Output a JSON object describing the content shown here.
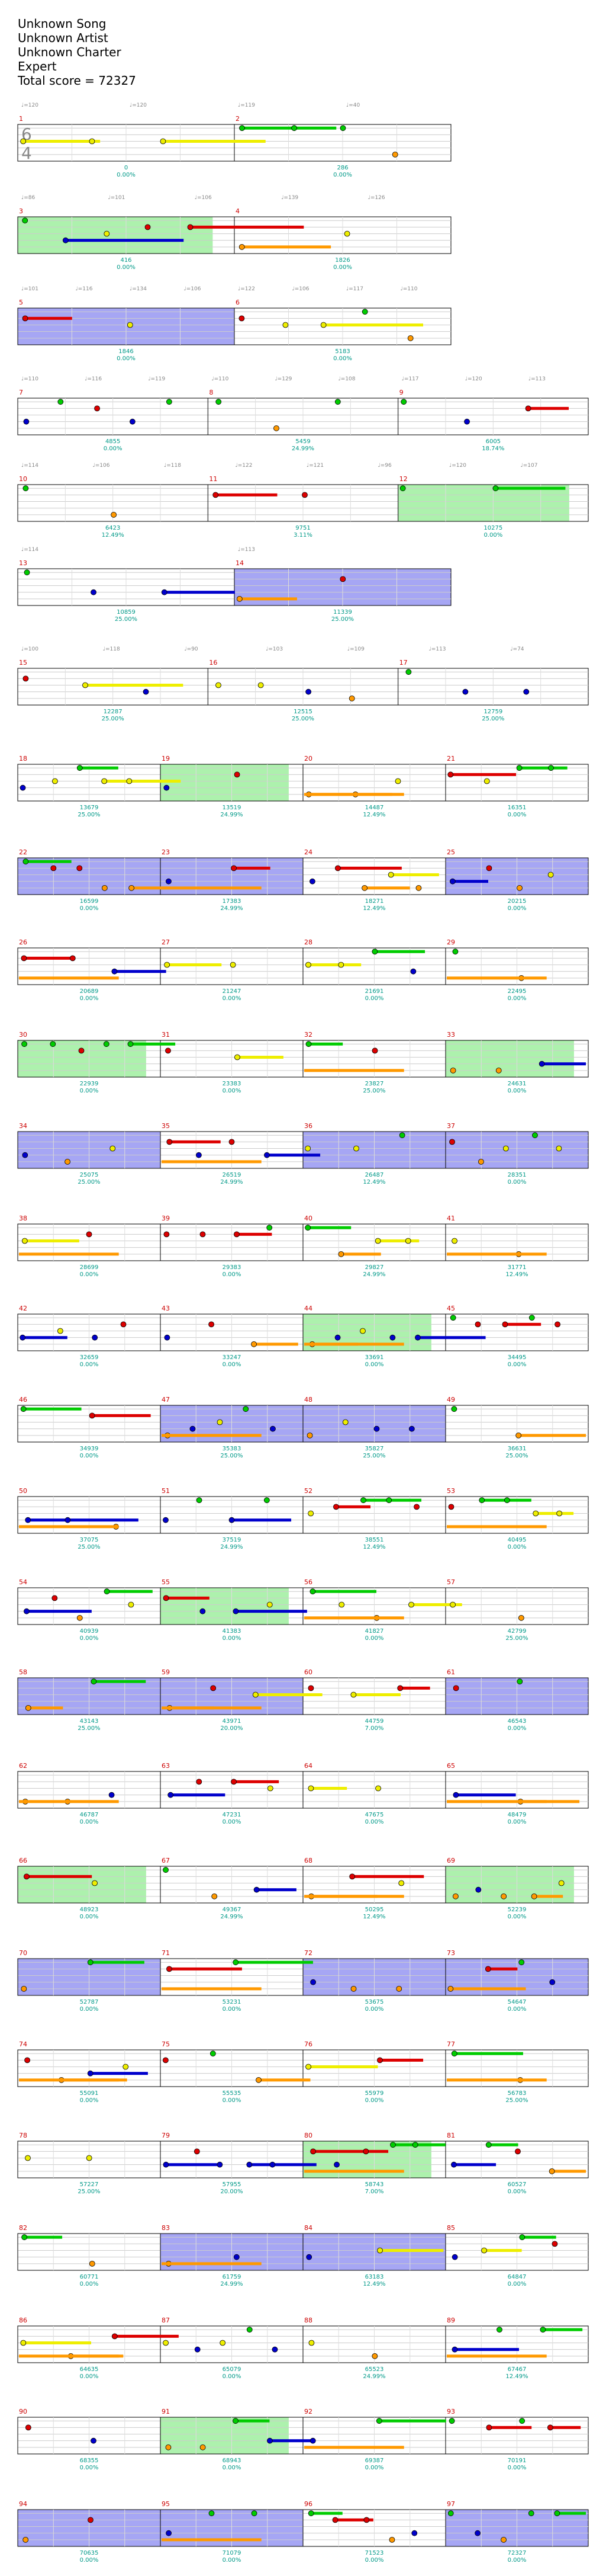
{
  "song": {
    "title": "Unknown Song",
    "artist": "Unknown Artist",
    "charter": "Unknown Charter",
    "difficulty": "Expert",
    "total_score_label": "Total score = 72327"
  },
  "colors": {
    "green": "#00cc00",
    "red": "#dd0000",
    "yellow": "#eeee00",
    "blue": "#0000cc",
    "orange": "#ff9900",
    "purple": "#880088",
    "brown": "#996600",
    "sp_phrase": "#7777ee",
    "sp_activation": "#99ee99",
    "measure_number": "#cc0000",
    "score": "#009988",
    "tempo_marker": "#888888"
  },
  "rows": [
    {
      "measures": [
        {
          "num": "1",
          "sig": "6/4"
        },
        {
          "num": "2",
          "sig": ""
        }
      ],
      "tempos": [
        "♩=120",
        "♩=120",
        "♩=119",
        "♩=40"
      ],
      "scores": [
        {
          "value": "0",
          "pct": "0.00%"
        },
        {
          "value": "286",
          "pct": "0.00%"
        }
      ]
    },
    {
      "measures": [
        {
          "num": "3"
        },
        {
          "num": "4"
        }
      ],
      "tempos": [
        "♩=86",
        "♩=101",
        "♩=106",
        "♩=139",
        "♩=126"
      ],
      "scores": [
        {
          "value": "416",
          "pct": "0.00%"
        },
        {
          "value": "1826",
          "pct": "0.00%"
        }
      ]
    },
    {
      "measures": [
        {
          "num": "5"
        },
        {
          "num": "6"
        }
      ],
      "tempos": [
        "♩=101",
        "♩=116",
        "♩=134",
        "♩=106",
        "♩=122",
        "♩=106",
        "♩=117",
        "♩=110"
      ],
      "scores": [
        {
          "value": "1846",
          "pct": "0.00%"
        },
        {
          "value": "5183",
          "pct": "0.00%"
        }
      ]
    },
    {
      "measures": [
        {
          "num": "7"
        },
        {
          "num": "8"
        },
        {
          "num": "9"
        }
      ],
      "tempos": [
        "♩=110",
        "♩=116",
        "♩=119",
        "♩=110",
        "♩=129",
        "♩=108",
        "♩=117",
        "♩=120",
        "♩=113"
      ],
      "scores": [
        {
          "value": "4855",
          "pct": "0.00%"
        },
        {
          "value": "5459",
          "pct": "24.99%"
        },
        {
          "value": "6005",
          "pct": "18.74%"
        }
      ]
    },
    {
      "measures": [
        {
          "num": "10"
        },
        {
          "num": "11"
        },
        {
          "num": "12"
        }
      ],
      "tempos": [
        "♩=114",
        "♩=106",
        "♩=118",
        "♩=122",
        "♩=121",
        "♩=96",
        "♩=120",
        "♩=107"
      ],
      "scores": [
        {
          "value": "6423",
          "pct": "12.49%"
        },
        {
          "value": "9751",
          "pct": "3.11%"
        },
        {
          "value": "10275",
          "pct": "0.00%"
        }
      ]
    },
    {
      "measures": [
        {
          "num": "13"
        },
        {
          "num": "14"
        }
      ],
      "tempos": [
        "♩=114",
        "♩=113"
      ],
      "scores": [
        {
          "value": "10859",
          "pct": "25.00%"
        },
        {
          "value": "11339",
          "pct": "25.00%"
        }
      ]
    },
    {
      "measures": [
        {
          "num": "15"
        },
        {
          "num": "16"
        },
        {
          "num": "17"
        }
      ],
      "tempos": [
        "♩=100",
        "♩=118",
        "♩=90",
        "♩=103",
        "♩=109",
        "♩=113",
        "♩=74"
      ],
      "scores": [
        {
          "value": "12287",
          "pct": "25.00%"
        },
        {
          "value": "12515",
          "pct": "25.00%"
        },
        {
          "value": "12759",
          "pct": "25.00%"
        }
      ]
    },
    {
      "measures": [
        {
          "num": "18"
        },
        {
          "num": "19"
        },
        {
          "num": "20"
        },
        {
          "num": "21"
        }
      ],
      "scores": [
        {
          "value": "13679",
          "pct": "25.00%"
        },
        {
          "value": "13519",
          "pct": "24.99%"
        },
        {
          "value": "14487",
          "pct": "12.49%"
        },
        {
          "value": "16351",
          "pct": "0.00%"
        }
      ]
    },
    {
      "measures": [
        {
          "num": "22"
        },
        {
          "num": "23"
        },
        {
          "num": "24"
        },
        {
          "num": "25"
        }
      ],
      "scores": [
        {
          "value": "16599",
          "pct": "0.00%"
        },
        {
          "value": "17383",
          "pct": "24.99%"
        },
        {
          "value": "18271",
          "pct": "12.49%"
        },
        {
          "value": "20215",
          "pct": "0.00%"
        }
      ]
    },
    {
      "measures": [
        {
          "num": "26"
        },
        {
          "num": "27"
        },
        {
          "num": "28"
        },
        {
          "num": "29"
        }
      ],
      "scores": [
        {
          "value": "20689",
          "pct": "0.00%"
        },
        {
          "value": "21247",
          "pct": "0.00%"
        },
        {
          "value": "21691",
          "pct": "0.00%"
        },
        {
          "value": "22495",
          "pct": "0.00%"
        }
      ]
    },
    {
      "measures": [
        {
          "num": "30"
        },
        {
          "num": "31"
        },
        {
          "num": "32"
        },
        {
          "num": "33"
        }
      ],
      "scores": [
        {
          "value": "22939",
          "pct": "0.00%"
        },
        {
          "value": "23383",
          "pct": "0.00%"
        },
        {
          "value": "23827",
          "pct": "25.00%"
        },
        {
          "value": "24631",
          "pct": "0.00%"
        }
      ]
    },
    {
      "measures": [
        {
          "num": "34"
        },
        {
          "num": "35"
        },
        {
          "num": "36"
        },
        {
          "num": "37"
        }
      ],
      "scores": [
        {
          "value": "25075",
          "pct": "25.00%"
        },
        {
          "value": "26519",
          "pct": "24.99%"
        },
        {
          "value": "26487",
          "pct": "12.49%"
        },
        {
          "value": "28351",
          "pct": "0.00%"
        }
      ]
    },
    {
      "measures": [
        {
          "num": "38"
        },
        {
          "num": "39"
        },
        {
          "num": "40"
        },
        {
          "num": "41"
        }
      ],
      "scores": [
        {
          "value": "28699",
          "pct": "0.00%"
        },
        {
          "value": "29383",
          "pct": "0.00%"
        },
        {
          "value": "29827",
          "pct": "24.99%"
        },
        {
          "value": "31771",
          "pct": "12.49%"
        }
      ]
    },
    {
      "measures": [
        {
          "num": "42"
        },
        {
          "num": "43"
        },
        {
          "num": "44"
        },
        {
          "num": "45"
        }
      ],
      "scores": [
        {
          "value": "32659",
          "pct": "0.00%"
        },
        {
          "value": "33247",
          "pct": "0.00%"
        },
        {
          "value": "33691",
          "pct": "0.00%"
        },
        {
          "value": "34495",
          "pct": "0.00%"
        }
      ]
    },
    {
      "measures": [
        {
          "num": "46"
        },
        {
          "num": "47"
        },
        {
          "num": "48"
        },
        {
          "num": "49"
        }
      ],
      "scores": [
        {
          "value": "34939",
          "pct": "0.00%"
        },
        {
          "value": "35383",
          "pct": "25.00%"
        },
        {
          "value": "35827",
          "pct": "25.00%"
        },
        {
          "value": "36631",
          "pct": "25.00%"
        }
      ]
    },
    {
      "measures": [
        {
          "num": "50"
        },
        {
          "num": "51"
        },
        {
          "num": "52"
        },
        {
          "num": "53"
        }
      ],
      "scores": [
        {
          "value": "37075",
          "pct": "25.00%"
        },
        {
          "value": "37519",
          "pct": "24.99%"
        },
        {
          "value": "38551",
          "pct": "12.49%"
        },
        {
          "value": "40495",
          "pct": "0.00%"
        }
      ]
    },
    {
      "measures": [
        {
          "num": "54"
        },
        {
          "num": "55"
        },
        {
          "num": "56"
        },
        {
          "num": "57"
        }
      ],
      "scores": [
        {
          "value": "40939",
          "pct": "0.00%"
        },
        {
          "value": "41383",
          "pct": "0.00%"
        },
        {
          "value": "41827",
          "pct": "0.00%"
        },
        {
          "value": "42799",
          "pct": "25.00%"
        }
      ]
    },
    {
      "measures": [
        {
          "num": "58"
        },
        {
          "num": "59"
        },
        {
          "num": "60"
        },
        {
          "num": "61"
        }
      ],
      "scores": [
        {
          "value": "43143",
          "pct": "25.00%"
        },
        {
          "value": "43971",
          "pct": "20.00%"
        },
        {
          "value": "44759",
          "pct": "7.00%"
        },
        {
          "value": "46543",
          "pct": "0.00%"
        }
      ]
    },
    {
      "measures": [
        {
          "num": "62"
        },
        {
          "num": "63"
        },
        {
          "num": "64"
        },
        {
          "num": "65"
        }
      ],
      "scores": [
        {
          "value": "46787",
          "pct": "0.00%"
        },
        {
          "value": "47231",
          "pct": "0.00%"
        },
        {
          "value": "47675",
          "pct": "0.00%"
        },
        {
          "value": "48479",
          "pct": "0.00%"
        }
      ]
    },
    {
      "measures": [
        {
          "num": "66"
        },
        {
          "num": "67"
        },
        {
          "num": "68"
        },
        {
          "num": "69"
        }
      ],
      "scores": [
        {
          "value": "48923",
          "pct": "0.00%"
        },
        {
          "value": "49367",
          "pct": "24.99%"
        },
        {
          "value": "50295",
          "pct": "12.49%"
        },
        {
          "value": "52239",
          "pct": "0.00%"
        }
      ]
    },
    {
      "measures": [
        {
          "num": "70"
        },
        {
          "num": "71"
        },
        {
          "num": "72"
        },
        {
          "num": "73"
        }
      ],
      "scores": [
        {
          "value": "52787",
          "pct": "0.00%"
        },
        {
          "value": "53231",
          "pct": "0.00%"
        },
        {
          "value": "53675",
          "pct": "0.00%"
        },
        {
          "value": "54647",
          "pct": "0.00%"
        }
      ]
    },
    {
      "measures": [
        {
          "num": "74"
        },
        {
          "num": "75"
        },
        {
          "num": "76"
        },
        {
          "num": "77"
        }
      ],
      "scores": [
        {
          "value": "55091",
          "pct": "0.00%"
        },
        {
          "value": "55535",
          "pct": "0.00%"
        },
        {
          "value": "55979",
          "pct": "0.00%"
        },
        {
          "value": "56783",
          "pct": "25.00%"
        }
      ]
    },
    {
      "measures": [
        {
          "num": "78"
        },
        {
          "num": "79"
        },
        {
          "num": "80"
        },
        {
          "num": "81"
        }
      ],
      "scores": [
        {
          "value": "57227",
          "pct": "25.00%"
        },
        {
          "value": "57955",
          "pct": "20.00%"
        },
        {
          "value": "58743",
          "pct": "7.00%"
        },
        {
          "value": "60527",
          "pct": "0.00%"
        }
      ]
    },
    {
      "measures": [
        {
          "num": "82"
        },
        {
          "num": "83"
        },
        {
          "num": "84"
        },
        {
          "num": "85"
        }
      ],
      "scores": [
        {
          "value": "60771",
          "pct": "0.00%"
        },
        {
          "value": "61759",
          "pct": "24.99%"
        },
        {
          "value": "63183",
          "pct": "12.49%"
        },
        {
          "value": "64847",
          "pct": "0.00%"
        }
      ]
    },
    {
      "measures": [
        {
          "num": "86"
        },
        {
          "num": "87"
        },
        {
          "num": "88"
        },
        {
          "num": "89"
        }
      ],
      "scores": [
        {
          "value": "64635",
          "pct": "0.00%"
        },
        {
          "value": "65079",
          "pct": "0.00%"
        },
        {
          "value": "65523",
          "pct": "24.99%"
        },
        {
          "value": "67467",
          "pct": "12.49%"
        }
      ]
    },
    {
      "measures": [
        {
          "num": "90"
        },
        {
          "num": "91"
        },
        {
          "num": "92"
        },
        {
          "num": "93"
        }
      ],
      "scores": [
        {
          "value": "68355",
          "pct": "0.00%"
        },
        {
          "value": "68943",
          "pct": "0.00%"
        },
        {
          "value": "69387",
          "pct": "0.00%"
        },
        {
          "value": "70191",
          "pct": "0.00%"
        }
      ]
    },
    {
      "measures": [
        {
          "num": "94"
        },
        {
          "num": "95"
        },
        {
          "num": "96"
        },
        {
          "num": "97"
        }
      ],
      "scores": [
        {
          "value": "70635",
          "pct": "0.00%"
        },
        {
          "value": "71079",
          "pct": "0.00%"
        },
        {
          "value": "71523",
          "pct": "0.00%"
        },
        {
          "value": "72327",
          "pct": "0.00%"
        }
      ]
    }
  ]
}
